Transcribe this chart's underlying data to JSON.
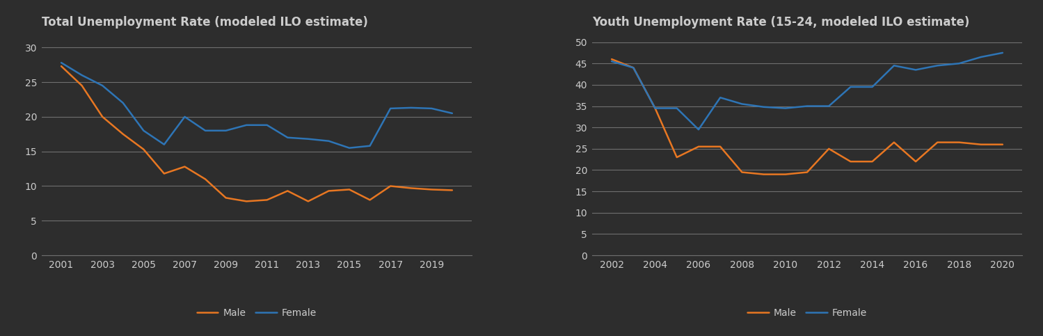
{
  "chart1": {
    "title": "Total Unemployment Rate (modeled ILO estimate)",
    "years_male": [
      2001,
      2002,
      2003,
      2004,
      2005,
      2006,
      2007,
      2008,
      2009,
      2010,
      2011,
      2012,
      2013,
      2014,
      2015,
      2016,
      2017,
      2018,
      2019,
      2020
    ],
    "male": [
      27.3,
      24.5,
      20.0,
      17.5,
      15.3,
      11.8,
      12.8,
      11.0,
      8.3,
      7.8,
      8.0,
      9.3,
      7.8,
      9.3,
      9.5,
      8.0,
      10.0,
      9.7,
      9.5,
      9.4
    ],
    "years_female": [
      2001,
      2002,
      2003,
      2004,
      2005,
      2006,
      2007,
      2008,
      2009,
      2010,
      2011,
      2012,
      2013,
      2014,
      2015,
      2016,
      2017,
      2018,
      2019,
      2020
    ],
    "female": [
      27.8,
      26.0,
      24.5,
      22.0,
      18.0,
      16.0,
      20.0,
      18.0,
      18.0,
      18.8,
      18.8,
      17.0,
      16.8,
      16.5,
      15.5,
      15.8,
      21.2,
      21.3,
      21.2,
      20.5
    ],
    "ylim": [
      0,
      32
    ],
    "yticks": [
      0,
      5,
      10,
      15,
      20,
      25,
      30
    ],
    "xticks": [
      2001,
      2003,
      2005,
      2007,
      2009,
      2011,
      2013,
      2015,
      2017,
      2019
    ]
  },
  "chart2": {
    "title": "Youth Unemployment Rate (15-24, modeled ILO estimate)",
    "years_male": [
      2002,
      2003,
      2004,
      2005,
      2006,
      2007,
      2008,
      2009,
      2010,
      2011,
      2012,
      2013,
      2014,
      2015,
      2016,
      2017,
      2018,
      2019,
      2020
    ],
    "male": [
      46.0,
      44.0,
      34.5,
      23.0,
      25.5,
      25.5,
      19.5,
      19.0,
      19.0,
      19.5,
      25.0,
      22.0,
      22.0,
      26.5,
      22.0,
      26.5,
      26.5,
      26.0,
      26.0
    ],
    "years_female": [
      2002,
      2003,
      2004,
      2005,
      2006,
      2007,
      2008,
      2009,
      2010,
      2011,
      2012,
      2013,
      2014,
      2015,
      2016,
      2017,
      2018,
      2019,
      2020
    ],
    "female": [
      45.5,
      44.0,
      34.5,
      34.5,
      29.5,
      37.0,
      35.5,
      34.8,
      34.5,
      35.0,
      35.0,
      39.5,
      39.5,
      44.5,
      43.5,
      44.5,
      45.0,
      46.5,
      47.5
    ],
    "ylim": [
      0,
      52
    ],
    "yticks": [
      0,
      5,
      10,
      15,
      20,
      25,
      30,
      35,
      40,
      45,
      50
    ],
    "xticks": [
      2002,
      2004,
      2006,
      2008,
      2010,
      2012,
      2014,
      2016,
      2018,
      2020
    ]
  },
  "male_color": "#E87722",
  "female_color": "#2E75B6",
  "bg_color": "#2d2d2d",
  "plot_bg_color": "#2d2d2d",
  "text_color": "#cccccc",
  "grid_color": "#707070",
  "line_width": 1.8,
  "title_fontsize": 12,
  "tick_fontsize": 10,
  "legend_fontsize": 10
}
